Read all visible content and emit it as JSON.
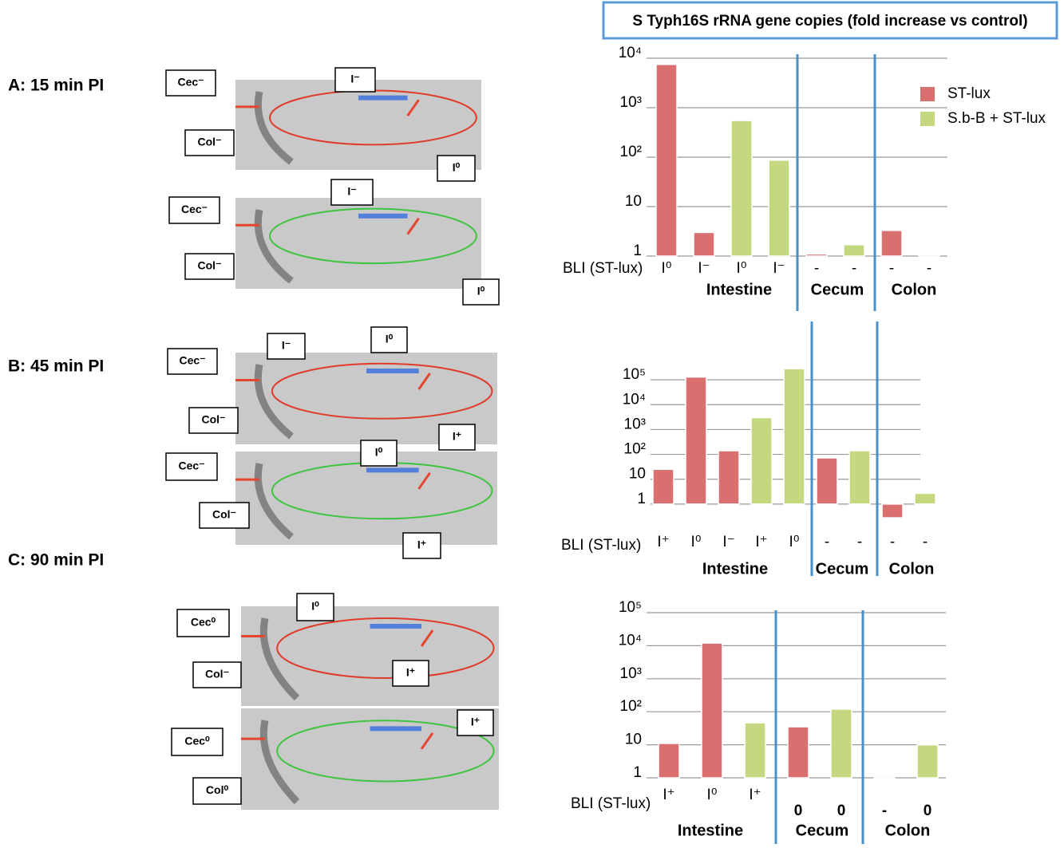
{
  "header": {
    "title": "S Typh16S rRNA gene copies (fold increase vs control)"
  },
  "panels": [
    {
      "label": "A: 15 min PI",
      "images": [
        {
          "labels": [
            "Cec⁻",
            "I⁻",
            "Col⁻",
            "I⁰"
          ]
        },
        {
          "labels": [
            "Cec⁻",
            "I⁻",
            "Col⁻",
            "I⁰"
          ]
        }
      ]
    },
    {
      "label": "B: 45 min PI",
      "images": [
        {
          "labels": [
            "Cec⁻",
            "I⁻",
            "I⁰",
            "Col⁻",
            "I⁺"
          ]
        },
        {
          "labels": [
            "Cec⁻",
            "I⁰",
            "Col⁻",
            "I⁺"
          ]
        }
      ]
    },
    {
      "label": "C: 90 min PI",
      "images": [
        {
          "labels": [
            "Cec⁰",
            "I⁰",
            "Col⁻",
            "I⁺"
          ]
        },
        {
          "labels": [
            "Cec⁰",
            "I⁺",
            "Col⁰"
          ]
        }
      ]
    }
  ],
  "chart_data": [
    {
      "type": "bar",
      "log_scale": true,
      "grid": true,
      "legend": true,
      "x_label": "BLI (ST-lux)",
      "categories": [
        "I⁰",
        "I⁻",
        "I⁰",
        "I⁻",
        "-",
        "-",
        "-",
        "-"
      ],
      "groups": [
        {
          "name": "Intestine",
          "size": 4
        },
        {
          "name": "Cecum",
          "size": 2
        },
        {
          "name": "Colon",
          "size": 2
        }
      ],
      "series": [
        {
          "name": "ST-lux",
          "color": "#d9706f",
          "values": [
            7500,
            3,
            null,
            null,
            1.1,
            null,
            3.3,
            null
          ]
        },
        {
          "name": "S.b-B + ST-lux",
          "color": "#c4d87f",
          "values": [
            null,
            null,
            550,
            87,
            null,
            1.7,
            null,
            1
          ]
        }
      ],
      "ylim": [
        1,
        10000
      ],
      "yticks": [
        1,
        10,
        {
          "value": 100,
          "label": "10²"
        },
        {
          "value": 1000,
          "label": "10³"
        },
        {
          "value": 10000,
          "label": "10⁴"
        }
      ]
    },
    {
      "type": "bar",
      "log_scale": true,
      "grid": true,
      "legend": false,
      "x_label": "BLI (ST-lux)",
      "categories": [
        "I⁺",
        "I⁰",
        "I⁻",
        "I⁺",
        "I⁰",
        "-",
        "-",
        "-",
        "-"
      ],
      "groups": [
        {
          "name": "Intestine",
          "size": 5
        },
        {
          "name": "Cecum",
          "size": 2
        },
        {
          "name": "Colon",
          "size": 2
        }
      ],
      "series": [
        {
          "color": "#d9706f",
          "values": [
            25,
            130000,
            140,
            null,
            null,
            72,
            null,
            0.28,
            null
          ]
        },
        {
          "color": "#c4d87f",
          "values": [
            null,
            null,
            null,
            3000,
            280000,
            null,
            140,
            null,
            2.7
          ]
        }
      ],
      "ylim": [
        0.1,
        1000000
      ],
      "yticks": [
        1,
        10,
        {
          "value": 100,
          "label": "10²"
        },
        {
          "value": 1000,
          "label": "10³"
        },
        {
          "value": 10000,
          "label": "10⁴"
        },
        {
          "value": 100000,
          "label": "10⁵"
        }
      ]
    },
    {
      "type": "bar",
      "log_scale": true,
      "grid": true,
      "legend": false,
      "x_label": "BLI (ST-lux)",
      "categories": [
        "I⁺",
        "I⁰",
        "I⁺",
        "0",
        "0",
        "-",
        "0"
      ],
      "groups": [
        {
          "name": "Intestine",
          "size": 3
        },
        {
          "name": "Cecum",
          "size": 2
        },
        {
          "name": "Colon",
          "size": 2
        }
      ],
      "series": [
        {
          "color": "#d9706f",
          "values": [
            11,
            12000,
            null,
            35,
            null,
            1,
            null
          ]
        },
        {
          "color": "#c4d87f",
          "values": [
            null,
            null,
            46,
            null,
            120,
            null,
            10
          ]
        }
      ],
      "ylim": [
        1,
        100000
      ],
      "yticks": [
        1,
        10,
        {
          "value": 100,
          "label": "10²"
        },
        {
          "value": 1000,
          "label": "10³"
        },
        {
          "value": 10000,
          "label": "10⁴"
        },
        {
          "value": 100000,
          "label": "10⁵"
        }
      ]
    }
  ]
}
